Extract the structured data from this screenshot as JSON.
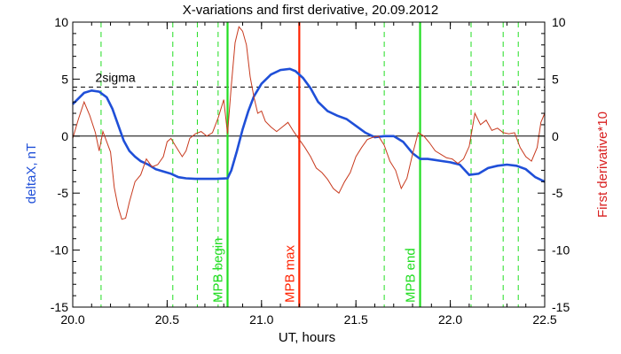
{
  "chart_data": {
    "type": "line",
    "title": "X-variations and first derivative, 20.09.2012",
    "xlabel": "UT, hours",
    "ylabel": "deltaX, nT",
    "y2label": "First derivative*10",
    "xlim": [
      20.0,
      22.5
    ],
    "ylim": [
      -15,
      10
    ],
    "y2lim": [
      -15,
      10
    ],
    "xticks": [
      "20.0",
      "20.5",
      "21.0",
      "21.5",
      "22.0",
      "22.5"
    ],
    "yticks": [
      "-15",
      "-10",
      "-5",
      "0",
      "5",
      "10"
    ],
    "y2ticks": [
      "-15",
      "-10",
      "-5",
      "0",
      "5",
      "10"
    ],
    "sigma_level": 4.3,
    "sigma_label": "2sigma",
    "zero_line": 0,
    "series": [
      {
        "color": "#1f4fd8",
        "axis": "left",
        "x": [
          20.0,
          20.03,
          20.06,
          20.1,
          20.14,
          20.18,
          20.21,
          20.24,
          20.27,
          20.3,
          20.33,
          20.36,
          20.4,
          20.44,
          20.48,
          20.52,
          20.56,
          20.6,
          20.65,
          20.7,
          20.76,
          20.82,
          20.84,
          20.87,
          20.9,
          20.93,
          20.96,
          21.0,
          21.05,
          21.1,
          21.15,
          21.18,
          21.22,
          21.26,
          21.3,
          21.35,
          21.4,
          21.45,
          21.5,
          21.55,
          21.6,
          21.65,
          21.7,
          21.75,
          21.8,
          21.84,
          21.88,
          21.92,
          21.96,
          22.0,
          22.05,
          22.1,
          22.15,
          22.2,
          22.25,
          22.3,
          22.35,
          22.4,
          22.45,
          22.5
        ],
        "y": [
          2.8,
          3.3,
          3.8,
          4.0,
          3.9,
          3.4,
          2.4,
          1.0,
          -0.4,
          -1.3,
          -1.8,
          -2.2,
          -2.5,
          -2.9,
          -3.1,
          -3.3,
          -3.6,
          -3.7,
          -3.75,
          -3.75,
          -3.75,
          -3.7,
          -3.0,
          -1.3,
          0.6,
          2.2,
          3.5,
          4.6,
          5.4,
          5.8,
          5.9,
          5.7,
          5.1,
          4.2,
          3.0,
          2.2,
          1.8,
          1.5,
          0.9,
          0.3,
          -0.1,
          0.0,
          0.0,
          -0.5,
          -1.5,
          -2.0,
          -2.0,
          -2.1,
          -2.2,
          -2.3,
          -2.5,
          -3.4,
          -3.3,
          -2.8,
          -2.6,
          -2.5,
          -2.6,
          -2.9,
          -3.6,
          -4.0
        ]
      },
      {
        "color": "#c83a1e",
        "axis": "right",
        "x": [
          20.0,
          20.03,
          20.06,
          20.09,
          20.12,
          20.14,
          20.16,
          20.18,
          20.2,
          20.22,
          20.24,
          20.26,
          20.28,
          20.3,
          20.33,
          20.36,
          20.39,
          20.42,
          20.45,
          20.48,
          20.5,
          20.52,
          20.55,
          20.58,
          20.6,
          20.62,
          20.65,
          20.68,
          20.71,
          20.74,
          20.77,
          20.8,
          20.82,
          20.84,
          20.86,
          20.88,
          20.9,
          20.92,
          20.94,
          20.96,
          20.98,
          21.0,
          21.02,
          21.05,
          21.08,
          21.11,
          21.14,
          21.17,
          21.2,
          21.23,
          21.26,
          21.29,
          21.32,
          21.35,
          21.38,
          21.41,
          21.44,
          21.47,
          21.5,
          21.53,
          21.56,
          21.59,
          21.62,
          21.65,
          21.68,
          21.71,
          21.74,
          21.77,
          21.8,
          21.83,
          21.86,
          21.89,
          21.92,
          21.95,
          21.98,
          22.01,
          22.04,
          22.07,
          22.1,
          22.13,
          22.16,
          22.19,
          22.22,
          22.25,
          22.28,
          22.31,
          22.34,
          22.37,
          22.4,
          22.43,
          22.46,
          22.48,
          22.5
        ],
        "y": [
          -0.2,
          1.5,
          3.0,
          1.8,
          0.3,
          -1.3,
          0.4,
          -0.5,
          -1.4,
          -4.5,
          -6.2,
          -7.3,
          -7.2,
          -5.8,
          -4.0,
          -3.4,
          -2.0,
          -2.7,
          -2.5,
          -1.8,
          -0.5,
          -0.2,
          -1.0,
          -1.8,
          -1.3,
          -0.2,
          0.2,
          0.4,
          0.0,
          0.3,
          1.6,
          3.2,
          0.2,
          4.5,
          8.2,
          9.6,
          9.2,
          8.0,
          5.2,
          3.4,
          2.0,
          2.2,
          1.3,
          0.8,
          0.4,
          0.8,
          1.2,
          0.4,
          -0.3,
          -1.0,
          -1.8,
          -2.8,
          -3.2,
          -3.8,
          -4.6,
          -5.0,
          -4.0,
          -3.2,
          -1.8,
          -1.0,
          -0.3,
          -0.1,
          0.0,
          -0.8,
          -2.2,
          -3.0,
          -4.6,
          -3.7,
          -1.6,
          0.3,
          0.0,
          -0.6,
          -1.3,
          -1.6,
          -1.9,
          -2.0,
          -2.4,
          -2.0,
          -0.9,
          2.0,
          1.0,
          1.4,
          0.5,
          0.7,
          0.3,
          0.2,
          0.3,
          -1.0,
          -1.8,
          -2.2,
          -1.0,
          1.2,
          2.0
        ]
      }
    ],
    "vlines": [
      {
        "x": 20.82,
        "label": "MPB begin",
        "color": "#22dd22",
        "style": "solid"
      },
      {
        "x": 21.2,
        "label": "MPB max",
        "color": "#ff2200",
        "style": "solid"
      },
      {
        "x": 21.84,
        "label": "MPB end",
        "color": "#22dd22",
        "style": "solid"
      }
    ],
    "dashed_vlines": [
      20.15,
      20.53,
      20.66,
      20.77,
      21.65,
      22.11,
      22.28,
      22.36
    ],
    "grid": false,
    "legend": "none"
  }
}
